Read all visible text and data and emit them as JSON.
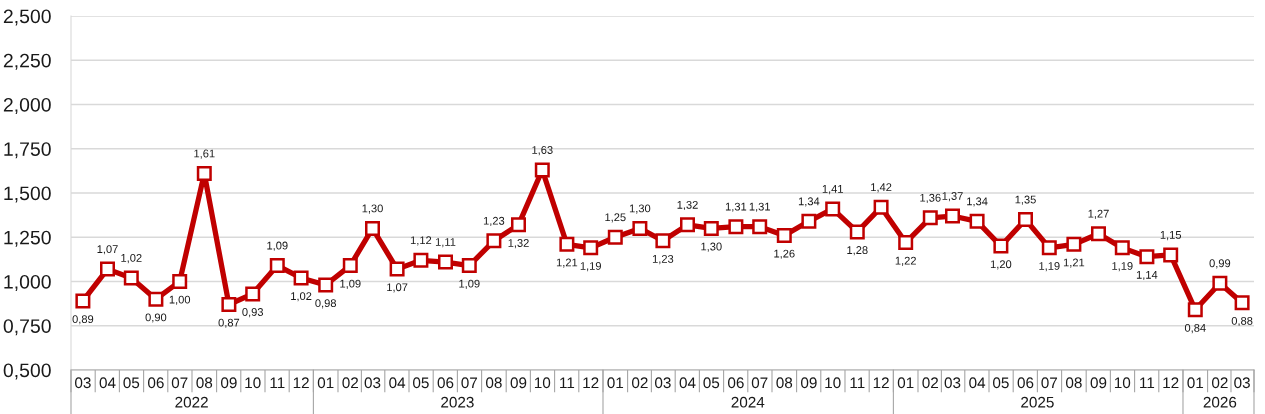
{
  "chart_data": {
    "type": "line",
    "x": [
      "2022-03",
      "2022-04",
      "2022-05",
      "2022-06",
      "2022-07",
      "2022-08",
      "2022-09",
      "2022-10",
      "2022-11",
      "2022-12",
      "2023-01",
      "2023-02",
      "2023-03",
      "2023-04",
      "2023-05",
      "2023-06",
      "2023-07",
      "2023-08",
      "2023-09",
      "2023-10",
      "2023-11",
      "2023-12",
      "2024-01",
      "2024-02",
      "2024-03",
      "2024-04",
      "2024-05",
      "2024-06",
      "2024-07",
      "2024-08",
      "2024-09",
      "2024-10",
      "2024-11",
      "2024-12",
      "2025-01",
      "2025-02",
      "2025-03",
      "2025-04",
      "2025-05",
      "2025-06",
      "2025-07",
      "2025-08",
      "2025-09",
      "2025-10",
      "2025-11",
      "2025-12",
      "2026-01",
      "2026-02",
      "2026-03"
    ],
    "series": [
      {
        "color": "#c00000",
        "values": [
          0.89,
          1.07,
          1.02,
          0.9,
          1.0,
          1.61,
          0.87,
          0.93,
          1.09,
          1.02,
          0.98,
          1.09,
          1.3,
          1.07,
          1.12,
          1.11,
          1.09,
          1.23,
          1.32,
          1.63,
          1.21,
          1.19,
          1.25,
          1.3,
          1.23,
          1.32,
          1.3,
          1.31,
          1.31,
          1.26,
          1.34,
          1.41,
          1.28,
          1.42,
          1.22,
          1.36,
          1.37,
          1.34,
          1.2,
          1.35,
          1.19,
          1.21,
          1.27,
          1.19,
          1.14,
          1.15,
          0.84,
          0.99,
          0.88
        ],
        "value_labels": [
          "0,89",
          "1,07",
          "1,02",
          "0,90",
          "1,00",
          "1,61",
          "0,87",
          "0,93",
          "1,09",
          "1,02",
          "0,98",
          "1,09",
          "1,30",
          "1,07",
          "1,12",
          "1,11",
          "1,09",
          "1,23",
          "1,32",
          "1,63",
          "1,21",
          "1,19",
          "1,25",
          "1,30",
          "1,23",
          "1,32",
          "1,30",
          "1,31",
          "1,31",
          "1,26",
          "1,34",
          "1,41",
          "1,28",
          "1,42",
          "1,22",
          "1,36",
          "1,37",
          "1,34",
          "1,20",
          "1,35",
          "1,19",
          "1,21",
          "1,27",
          "1,19",
          "1,14",
          "1,15",
          "0,84",
          "0,99",
          "0,88"
        ]
      }
    ],
    "xlim": [
      "2022-02-14",
      "2026-03-16"
    ],
    "xticks": [
      {
        "value": "2022-03",
        "label": "03"
      },
      {
        "value": "2022-04",
        "label": "04"
      },
      {
        "value": "2022-05",
        "label": "05"
      },
      {
        "value": "2022-06",
        "label": "06"
      },
      {
        "value": "2022-07",
        "label": "07"
      },
      {
        "value": "2022-08",
        "label": "08"
      },
      {
        "value": "2022-09",
        "label": "09"
      },
      {
        "value": "2022-10",
        "label": "10"
      },
      {
        "value": "2022-11",
        "label": "11"
      },
      {
        "value": "2022-12",
        "label": "12"
      },
      {
        "value": "2023-01",
        "label": "01"
      },
      {
        "value": "2023-02",
        "label": "02"
      },
      {
        "value": "2023-03",
        "label": "03"
      },
      {
        "value": "2023-04",
        "label": "04"
      },
      {
        "value": "2023-05",
        "label": "05"
      },
      {
        "value": "2023-06",
        "label": "06"
      },
      {
        "value": "2023-07",
        "label": "07"
      },
      {
        "value": "2023-08",
        "label": "08"
      },
      {
        "value": "2023-09",
        "label": "09"
      },
      {
        "value": "2023-10",
        "label": "10"
      },
      {
        "value": "2023-11",
        "label": "11"
      },
      {
        "value": "2023-12",
        "label": "12"
      },
      {
        "value": "2024-01",
        "label": "01"
      },
      {
        "value": "2024-02",
        "label": "02"
      },
      {
        "value": "2024-03",
        "label": "03"
      },
      {
        "value": "2024-04",
        "label": "04"
      },
      {
        "value": "2024-05",
        "label": "05"
      },
      {
        "value": "2024-06",
        "label": "06"
      },
      {
        "value": "2024-07",
        "label": "07"
      },
      {
        "value": "2024-08",
        "label": "08"
      },
      {
        "value": "2024-09",
        "label": "09"
      },
      {
        "value": "2024-10",
        "label": "10"
      },
      {
        "value": "2024-11",
        "label": "11"
      },
      {
        "value": "2024-12",
        "label": "12"
      },
      {
        "value": "2025-01",
        "label": "01"
      },
      {
        "value": "2025-02",
        "label": "02"
      },
      {
        "value": "2025-03",
        "label": "03"
      },
      {
        "value": "2025-04",
        "label": "04"
      },
      {
        "value": "2025-05",
        "label": "05"
      },
      {
        "value": "2025-06",
        "label": "06"
      },
      {
        "value": "2025-07",
        "label": "07"
      },
      {
        "value": "2025-08",
        "label": "08"
      },
      {
        "value": "2025-09",
        "label": "09"
      },
      {
        "value": "2025-10",
        "label": "10"
      },
      {
        "value": "2025-11",
        "label": "11"
      },
      {
        "value": "2025-12",
        "label": "12"
      },
      {
        "value": "2026-01",
        "label": "01"
      },
      {
        "value": "2026-02",
        "label": "02"
      },
      {
        "value": "2026-03",
        "label": "03"
      }
    ],
    "x2lim": [
      "2022-02-14",
      "2026-03-16"
    ],
    "x2ticks": [
      {
        "value": "2022-07-16",
        "label": "2022"
      },
      {
        "value": "2023-06-16",
        "label": "2023"
      },
      {
        "value": "2024-06-16",
        "label": "2024"
      },
      {
        "value": "2025-06-16",
        "label": "2025"
      },
      {
        "value": "2026-02-01",
        "label": "2026"
      }
    ],
    "ylim": [
      0.5,
      2.5
    ],
    "yticks": [
      {
        "value": 0.5,
        "label": "0,500"
      },
      {
        "value": 0.75,
        "label": "0,750"
      },
      {
        "value": 1.0,
        "label": "1,000"
      },
      {
        "value": 1.25,
        "label": "1,250"
      },
      {
        "value": 1.5,
        "label": "1,500"
      },
      {
        "value": 1.75,
        "label": "1,750"
      },
      {
        "value": 2.0,
        "label": "2,000"
      },
      {
        "value": 2.25,
        "label": "2,250"
      },
      {
        "value": 2.5,
        "label": "2,500"
      }
    ],
    "grid": "y",
    "marker": "square",
    "line_style": "solid"
  }
}
